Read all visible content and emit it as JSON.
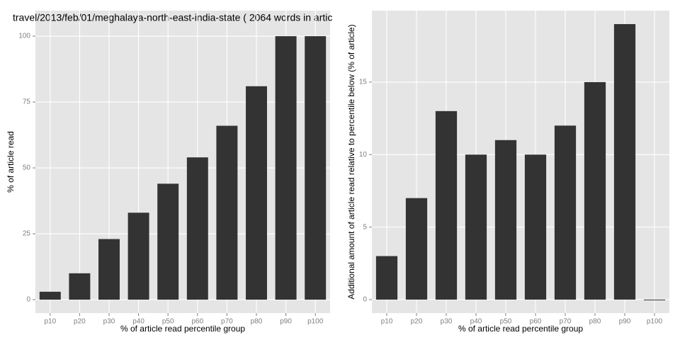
{
  "chart_data": [
    {
      "type": "bar",
      "title": "travel/2013/feb/01/meghalaya-north-east-india-state ( 2064 words in artic",
      "x_label": "% of article read percentile group",
      "y_label": "% of article read",
      "categories": [
        "p10",
        "p20",
        "p30",
        "p40",
        "p50",
        "p60",
        "p70",
        "p80",
        "p90",
        "p100"
      ],
      "values": [
        3,
        10,
        23,
        33,
        44,
        54,
        66,
        81,
        100,
        100
      ],
      "color": "#333333",
      "ylim": [
        -5.1,
        109.7
      ],
      "yticks": [
        0,
        25,
        50,
        75,
        100
      ],
      "grid": true
    },
    {
      "type": "bar",
      "x_label": "% of article read percentile group",
      "y_label": "Additional amount of article read relative to percentile below (% of article)",
      "categories": [
        "p10",
        "p20",
        "p30",
        "p40",
        "p50",
        "p60",
        "p70",
        "p80",
        "p90",
        "p100"
      ],
      "values": [
        3,
        7,
        13,
        10,
        11,
        10,
        12,
        15,
        19,
        0
      ],
      "color": "#333333",
      "ylim": [
        -0.93,
        19.93
      ],
      "yticks": [
        0,
        5,
        10,
        15
      ],
      "grid": true
    }
  ]
}
